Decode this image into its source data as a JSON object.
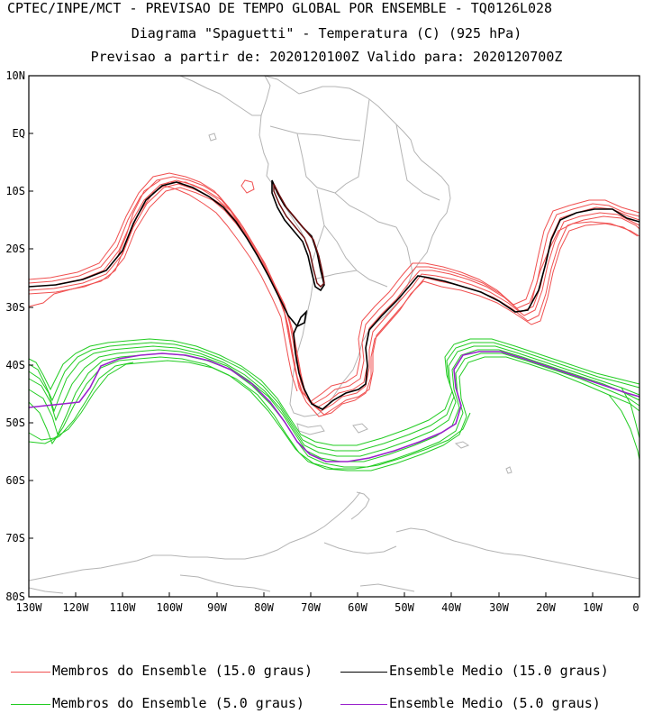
{
  "header": {
    "line1": "CPTEC/INPE/MCT - PREVISAO DE TEMPO GLOBAL POR ENSEMBLE - TQ0126L028",
    "line2": "Diagrama \"Spaguetti\" - Temperatura (C) (925 hPa)",
    "line3": "Previsao a partir de: 2020120100Z  Valido para: 2020120700Z"
  },
  "axes": {
    "y_ticks": [
      "10N",
      "EQ",
      "10S",
      "20S",
      "30S",
      "40S",
      "50S",
      "60S",
      "70S",
      "80S"
    ],
    "x_ticks": [
      "130W",
      "120W",
      "110W",
      "100W",
      "90W",
      "80W",
      "70W",
      "60W",
      "50W",
      "40W",
      "30W",
      "20W",
      "10W",
      "0"
    ]
  },
  "legend": {
    "items": [
      {
        "label": "Membros do Ensemble (15.0 graus)",
        "color": "#f05050"
      },
      {
        "label": "Ensemble Medio (15.0 graus)",
        "color": "#000000"
      },
      {
        "label": "Membros do Ensemble (5.0 graus)",
        "color": "#22cc22"
      },
      {
        "label": "Ensemble Medio (5.0 graus)",
        "color": "#9922cc"
      }
    ]
  },
  "colors": {
    "member15": "#f05050",
    "mean15": "#000000",
    "member5": "#22cc22",
    "mean5": "#9922cc",
    "coast": "#b4b4b4"
  }
}
